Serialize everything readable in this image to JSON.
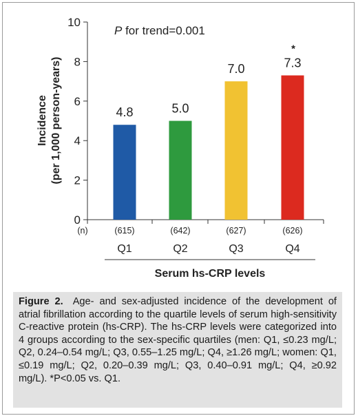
{
  "chart_data": {
    "type": "bar",
    "ylabel": "Incidence",
    "ylabel_sub": "(per 1,000 person-years)",
    "xlabel": "Serum hs-CRP levels",
    "annotation": {
      "prefix": "P",
      "text": " for trend=0.001"
    },
    "ylim": [
      0,
      10
    ],
    "yticks": [
      0,
      2,
      4,
      6,
      8,
      10
    ],
    "n_label": "(n)",
    "categories": [
      "Q1",
      "Q2",
      "Q3",
      "Q4"
    ],
    "n_values": [
      "(615)",
      "(642)",
      "(627)",
      "(626)"
    ],
    "values": [
      4.8,
      5.0,
      7.0,
      7.3
    ],
    "value_labels": [
      "4.8",
      "5.0",
      "7.0",
      "7.3"
    ],
    "markers": [
      "",
      "",
      "",
      "*"
    ],
    "colors": [
      "#1f5aa6",
      "#2e9a3e",
      "#f1c232",
      "#dc2a1f"
    ],
    "grid": false
  },
  "caption": {
    "label": "Figure 2.",
    "text": "Age- and sex-adjusted incidence of the development of atrial fibrillation according to the quartile levels of serum high-sensitivity C-reactive protein (hs-CRP). The hs-CRP levels were categorized into 4 groups according to the sex-specific quartiles (men: Q1, ≤0.23 mg/L; Q2, 0.24–0.54 mg/L; Q3, 0.55–1.25 mg/L; Q4, ≥1.26 mg/L; women: Q1, ≤0.19 mg/L; Q2, 0.20–0.39 mg/L; Q3, 0.40–0.91 mg/L; Q4, ≥0.92 mg/L). *P<0.05 vs. Q1."
  }
}
